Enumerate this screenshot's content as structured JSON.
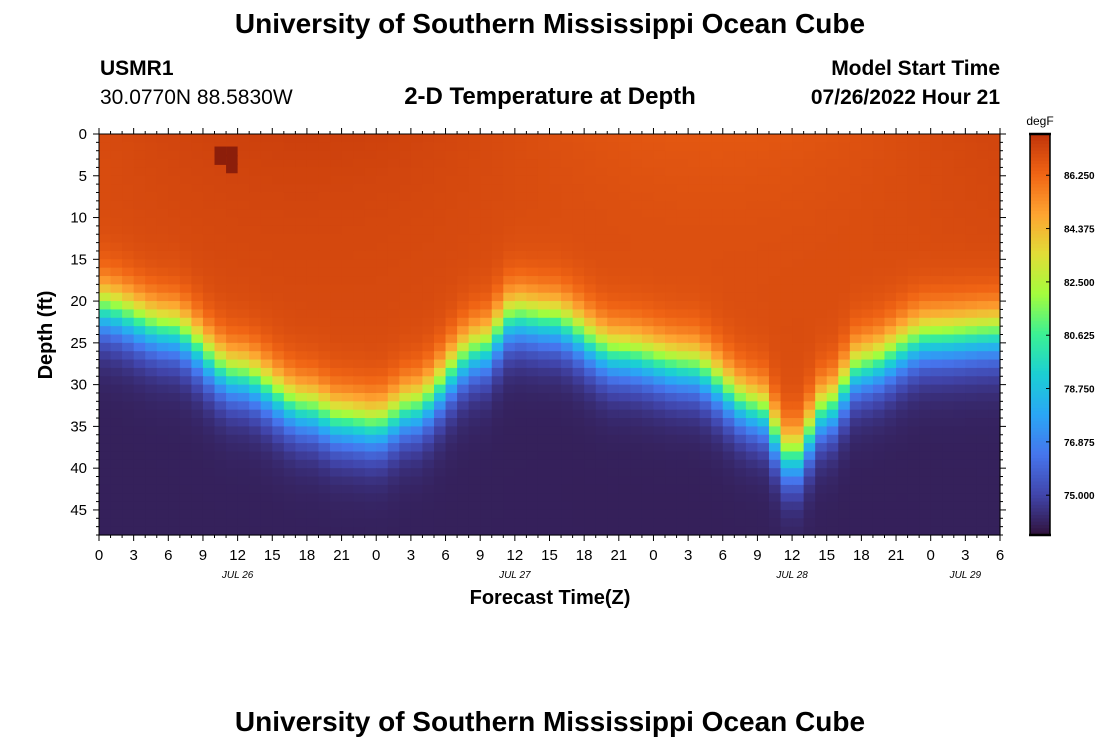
{
  "header": {
    "title": "University of Southern Mississippi Ocean Cube",
    "station_id": "USMR1",
    "coordinates": "30.0770N  88.5830W",
    "subtitle": "2-D Temperature at Depth",
    "model_start_label": "Model Start Time",
    "model_start_value": "07/26/2022 Hour 21"
  },
  "footer": {
    "title": "University of Southern Mississippi Ocean Cube"
  },
  "chart_data": {
    "type": "heatmap",
    "title": "2-D Temperature at Depth",
    "xlabel": "Forecast Time(Z)",
    "ylabel": "Depth (ft)",
    "x_range_hours": [
      0,
      78
    ],
    "x_ticks": [
      "0",
      "3",
      "6",
      "9",
      "12",
      "15",
      "18",
      "21",
      "0",
      "3",
      "6",
      "9",
      "12",
      "15",
      "18",
      "21",
      "0",
      "3",
      "6",
      "9",
      "12",
      "15",
      "18",
      "21",
      "0",
      "3",
      "6"
    ],
    "x_tick_hours": [
      0,
      3,
      6,
      9,
      12,
      15,
      18,
      21,
      24,
      27,
      30,
      33,
      36,
      39,
      42,
      45,
      48,
      51,
      54,
      57,
      60,
      63,
      66,
      69,
      72,
      75,
      78
    ],
    "date_labels": [
      {
        "label": "JUL 26",
        "hour": 12
      },
      {
        "label": "JUL 27",
        "hour": 36
      },
      {
        "label": "JUL 28",
        "hour": 60
      },
      {
        "label": "JUL 29",
        "hour": 75
      }
    ],
    "y_range_ft": [
      0,
      48
    ],
    "y_ticks": [
      "0",
      "5",
      "10",
      "15",
      "20",
      "25",
      "30",
      "35",
      "40",
      "45"
    ],
    "y_tick_values": [
      0,
      5,
      10,
      15,
      20,
      25,
      30,
      35,
      40,
      45
    ],
    "colorbar": {
      "unit": "degF",
      "min": 73.6,
      "max": 87.7,
      "tick_labels": [
        "86.250",
        "84.375",
        "82.500",
        "80.625",
        "78.750",
        "76.875",
        "75.000"
      ],
      "tick_values": [
        86.25,
        84.375,
        82.5,
        80.625,
        78.75,
        76.875,
        75.0
      ]
    },
    "thermocline_depth_ft_by_hour": [
      [
        0,
        21
      ],
      [
        6,
        23.5
      ],
      [
        12,
        29
      ],
      [
        18,
        33
      ],
      [
        21,
        34.5
      ],
      [
        24,
        35
      ],
      [
        27,
        33
      ],
      [
        33,
        26
      ],
      [
        36,
        22
      ],
      [
        39,
        22.5
      ],
      [
        45,
        26.5
      ],
      [
        51,
        28
      ],
      [
        57,
        33
      ],
      [
        60,
        39
      ],
      [
        63,
        33
      ],
      [
        66,
        28
      ],
      [
        72,
        24.5
      ],
      [
        78,
        24
      ]
    ],
    "surface_temp_degF": 87.0,
    "bottom_temp_degF": 74.0,
    "cells": {
      "time_columns": 78,
      "depth_rows": 48
    }
  }
}
